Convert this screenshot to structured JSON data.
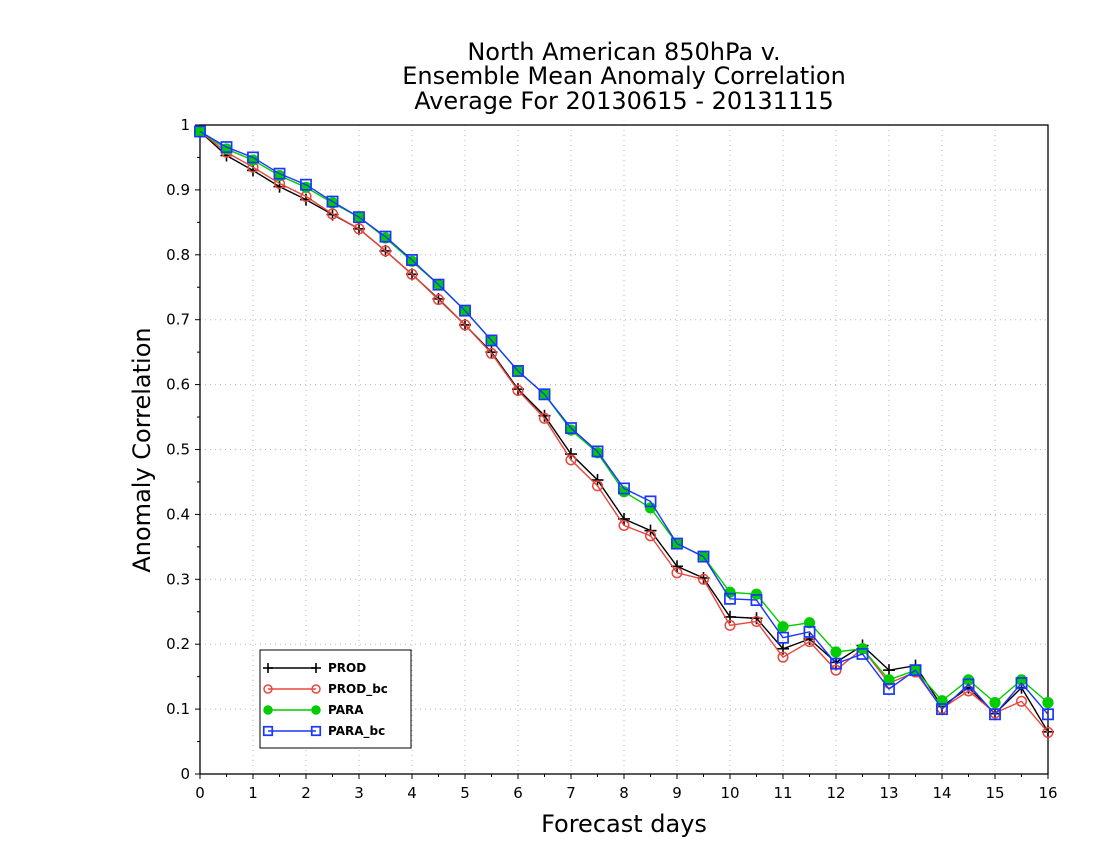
{
  "chart_data": {
    "type": "line",
    "title_lines": [
      "North American 850hPa v.",
      "Ensemble Mean Anomaly Correlation",
      "Average For 20130615 - 20131115"
    ],
    "xlabel": "Forecast days",
    "ylabel": "Anomaly Correlation",
    "xlim": [
      0,
      16
    ],
    "ylim": [
      0,
      1
    ],
    "xticks": [
      "0",
      "1",
      "2",
      "3",
      "4",
      "5",
      "6",
      "7",
      "8",
      "9",
      "10",
      "11",
      "12",
      "13",
      "14",
      "15",
      "16"
    ],
    "yticks": [
      "0",
      "0.1",
      "0.2",
      "0.3",
      "0.4",
      "0.5",
      "0.6",
      "0.7",
      "0.8",
      "0.9",
      "1"
    ],
    "grid": true,
    "legend_position": "bottom-left",
    "x": [
      0,
      0.5,
      1,
      1.5,
      2,
      2.5,
      3,
      3.5,
      4,
      4.5,
      5,
      5.5,
      6,
      6.5,
      7,
      7.5,
      8,
      8.5,
      9,
      9.5,
      10,
      10.5,
      11,
      11.5,
      12,
      12.5,
      13,
      13.5,
      14,
      14.5,
      15,
      15.5,
      16
    ],
    "series": [
      {
        "name": "PROD",
        "color": "#000000",
        "marker": "plus",
        "values": [
          0.99,
          0.953,
          0.93,
          0.905,
          0.885,
          0.862,
          0.84,
          0.806,
          0.77,
          0.732,
          0.692,
          0.65,
          0.593,
          0.552,
          0.493,
          0.453,
          0.393,
          0.375,
          0.32,
          0.302,
          0.242,
          0.24,
          0.193,
          0.208,
          0.172,
          0.198,
          0.16,
          0.167,
          0.104,
          0.133,
          0.093,
          0.133,
          0.065
        ]
      },
      {
        "name": "PROD_bc",
        "color": "#e8473f",
        "marker": "open-circle",
        "values": [
          0.99,
          0.958,
          0.935,
          0.91,
          0.89,
          0.863,
          0.84,
          0.806,
          0.77,
          0.731,
          0.692,
          0.648,
          0.591,
          0.548,
          0.484,
          0.444,
          0.383,
          0.367,
          0.31,
          0.3,
          0.229,
          0.235,
          0.18,
          0.204,
          0.16,
          0.193,
          0.14,
          0.157,
          0.101,
          0.128,
          0.094,
          0.112,
          0.064
        ]
      },
      {
        "name": "PARA",
        "color": "#00cc00",
        "marker": "filled-circle",
        "values": [
          0.99,
          0.963,
          0.946,
          0.922,
          0.904,
          0.88,
          0.858,
          0.826,
          0.79,
          0.754,
          0.714,
          0.668,
          0.621,
          0.585,
          0.53,
          0.495,
          0.435,
          0.41,
          0.355,
          0.335,
          0.28,
          0.277,
          0.227,
          0.233,
          0.188,
          0.193,
          0.145,
          0.16,
          0.113,
          0.145,
          0.11,
          0.145,
          0.11
        ]
      },
      {
        "name": "PARA_bc",
        "color": "#1a36ff",
        "marker": "open-square",
        "values": [
          0.99,
          0.966,
          0.95,
          0.925,
          0.908,
          0.882,
          0.858,
          0.828,
          0.792,
          0.754,
          0.714,
          0.668,
          0.621,
          0.585,
          0.533,
          0.497,
          0.44,
          0.42,
          0.355,
          0.335,
          0.27,
          0.268,
          0.21,
          0.219,
          0.17,
          0.185,
          0.131,
          0.16,
          0.1,
          0.138,
          0.092,
          0.14,
          0.092
        ]
      }
    ]
  }
}
